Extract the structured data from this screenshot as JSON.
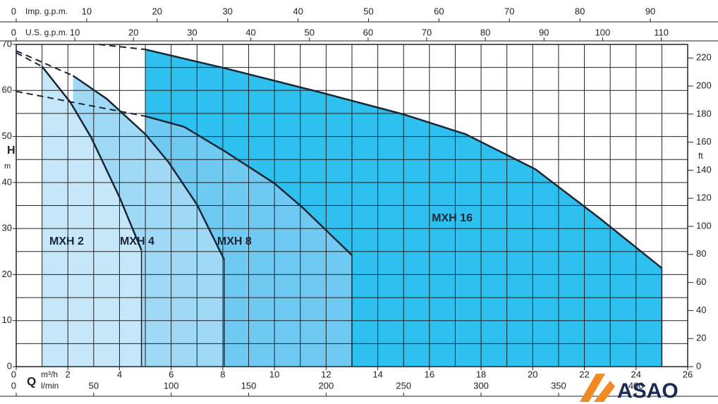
{
  "chart_data": {
    "type": "area",
    "y_label": "H",
    "y_unit": "m",
    "y2_unit": "ft",
    "x_symbol": "Q",
    "xlim": [
      0,
      26
    ],
    "xticks": [
      0,
      2,
      4,
      6,
      8,
      10,
      12,
      14,
      16,
      18,
      20,
      22,
      24,
      26
    ],
    "x_unit": "m³/h",
    "ylim": [
      0,
      70
    ],
    "yticks": [
      0,
      10,
      20,
      30,
      40,
      50,
      60,
      70
    ],
    "y2lim": [
      0,
      229.66
    ],
    "y2ticks": [
      0,
      20,
      40,
      60,
      80,
      100,
      120,
      140,
      160,
      180,
      200,
      220
    ],
    "xgrid": [
      0,
      1,
      2,
      3,
      4,
      5,
      6,
      7,
      8,
      9,
      10,
      11,
      12,
      13,
      14,
      15,
      16,
      17,
      18,
      19,
      20,
      21,
      22,
      23,
      24,
      25,
      26
    ],
    "ygrid": [
      0,
      5,
      10,
      15,
      20,
      25,
      30,
      35,
      40,
      45,
      50,
      55,
      60,
      65,
      70
    ],
    "secondary_x_axes": [
      {
        "unit": "l/min",
        "lim": [
          0,
          433.33
        ],
        "ticks": [
          0,
          50,
          100,
          150,
          200,
          250,
          300,
          350,
          400
        ],
        "position": "bottom"
      },
      {
        "unit": "U.S. g.p.m.",
        "lim": [
          0,
          114.5
        ],
        "ticks": [
          0,
          10,
          20,
          30,
          40,
          50,
          60,
          70,
          80,
          90,
          100,
          110
        ],
        "position": "top"
      },
      {
        "unit": "Imp. g.p.m.",
        "lim": [
          0,
          95.3
        ],
        "ticks": [
          0,
          10,
          20,
          30,
          40,
          50,
          60,
          70,
          80,
          90
        ],
        "position": "top"
      }
    ],
    "series": [
      {
        "name": "MXH 16",
        "color": "#2ec1ef",
        "x": [
          5,
          8.1,
          11.7,
          15,
          17.4,
          20.1,
          22.6,
          25
        ],
        "values": [
          68.9,
          64.8,
          59.7,
          54.8,
          50.5,
          42.9,
          32.2,
          21.4
        ],
        "extension": {
          "x": [
            3.2,
            5
          ],
          "values": [
            70,
            68.9
          ]
        }
      },
      {
        "name": "MXH 8",
        "color": "#6fc9f1",
        "x": [
          5,
          6.5,
          8.1,
          10,
          11.1,
          13
        ],
        "values": [
          54.4,
          52.1,
          46.7,
          39.8,
          34.5,
          24.2
        ],
        "extension": {
          "x": [
            0,
            5
          ],
          "values": [
            59.8,
            54.4
          ]
        }
      },
      {
        "name": "MXH 4",
        "color": "#9fd9f6",
        "x": [
          2.2,
          3.5,
          5,
          5.9,
          7,
          8.05
        ],
        "values": [
          63.2,
          58.2,
          50.5,
          44.4,
          35.2,
          23.3
        ],
        "extension": {
          "x": [
            0,
            2.2
          ],
          "values": [
            68.6,
            63.2
          ]
        }
      },
      {
        "name": "MXH 2",
        "color": "#c6e7f9",
        "x": [
          1,
          2.1,
          2.9,
          4,
          4.85
        ],
        "values": [
          65.2,
          57.4,
          49.8,
          36.8,
          25.3
        ],
        "extension": {
          "x": [
            0,
            1
          ],
          "values": [
            68.2,
            65.2
          ]
        }
      }
    ],
    "logo": "ASAO"
  }
}
